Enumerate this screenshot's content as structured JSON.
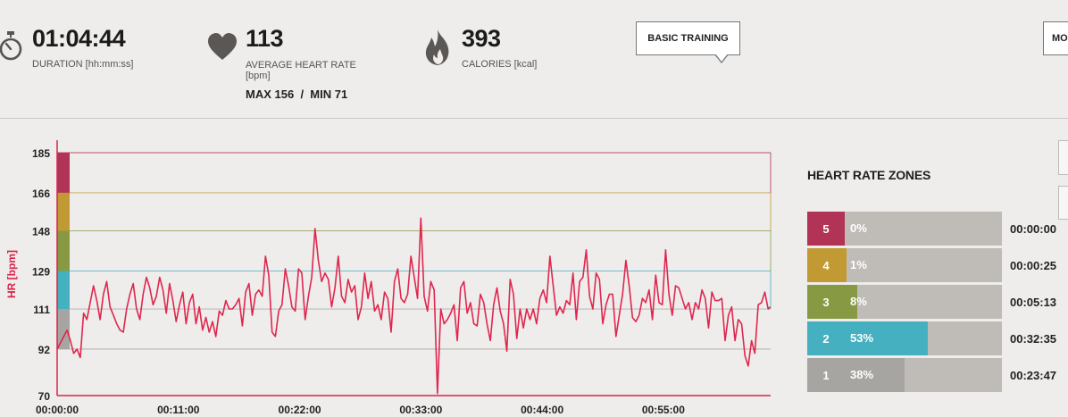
{
  "stats": {
    "duration": {
      "value": "01:04:44",
      "label": "DURATION [hh:mm:ss]",
      "icon": "stopwatch-icon"
    },
    "heart_rate": {
      "value": "113",
      "label": "AVERAGE HEART RATE [bpm]",
      "max_label": "MAX 156",
      "separator": "/",
      "min_label": "MIN 71",
      "icon": "heart-icon"
    },
    "calories": {
      "value": "393",
      "label": "CALORIES [kcal]",
      "icon": "flame-icon"
    }
  },
  "buttons": {
    "training_type": "BASIC TRAINING",
    "more": "MO"
  },
  "zones": {
    "title": "HEART RATE ZONES",
    "items": [
      {
        "zone": "5",
        "percent": "0%",
        "fraction": 0.0,
        "time": "00:00:00",
        "color": "#b13355"
      },
      {
        "zone": "4",
        "percent": "1%",
        "fraction": 0.01,
        "time": "00:00:25",
        "color": "#c29a33"
      },
      {
        "zone": "3",
        "percent": "8%",
        "fraction": 0.08,
        "time": "00:05:13",
        "color": "#879a43"
      },
      {
        "zone": "2",
        "percent": "53%",
        "fraction": 0.53,
        "time": "00:32:35",
        "color": "#45b0c0"
      },
      {
        "zone": "1",
        "percent": "38%",
        "fraction": 0.38,
        "time": "00:23:47",
        "color": "#a7a5a2"
      }
    ]
  },
  "chart_data": {
    "type": "line",
    "ylabel": "HR [bpm]",
    "y_ticks": [
      "185",
      "166",
      "148",
      "129",
      "111",
      "92",
      "70"
    ],
    "ylim": [
      70,
      185
    ],
    "x_ticks": [
      "00:00:00",
      "00:11:00",
      "00:22:00",
      "00:33:00",
      "00:44:00",
      "00:55:00"
    ],
    "x_unit": "minutes",
    "xlim": [
      0,
      64.73
    ],
    "zone_bands": [
      {
        "from": 166,
        "to": 185,
        "color": "#b13355"
      },
      {
        "from": 148,
        "to": 166,
        "color": "#c29a33"
      },
      {
        "from": 129,
        "to": 148,
        "color": "#879a43"
      },
      {
        "from": 111,
        "to": 129,
        "color": "#45b0c0"
      },
      {
        "from": 92,
        "to": 111,
        "color": "#a7a5a2"
      }
    ],
    "line_color": "#e0264e",
    "series": [
      {
        "x": [
          0,
          0.3,
          0.6,
          0.9,
          1.2,
          1.5,
          1.8,
          2.1,
          2.4,
          2.7,
          3.0,
          3.3,
          3.6,
          3.9,
          4.2,
          4.5,
          4.8,
          5.1,
          5.4,
          5.7,
          6.0,
          6.3,
          6.6,
          6.9,
          7.2,
          7.5,
          7.8,
          8.1,
          8.4,
          8.7,
          9.0,
          9.3,
          9.6,
          9.9,
          10.2,
          10.5,
          10.8,
          11.1,
          11.4,
          11.7,
          12.0,
          12.3,
          12.6,
          12.9,
          13.2,
          13.5,
          13.8,
          14.1,
          14.4,
          14.7,
          15.0,
          15.3,
          15.6,
          15.9,
          16.2,
          16.5,
          16.8,
          17.1,
          17.4,
          17.7,
          18.0,
          18.3,
          18.6,
          18.9,
          19.2,
          19.5,
          19.8,
          20.1,
          20.4,
          20.7,
          21.0,
          21.3,
          21.6,
          21.9,
          22.2,
          22.5,
          22.8,
          23.1,
          23.4,
          23.7,
          24.0,
          24.3,
          24.6,
          24.9,
          25.2,
          25.5,
          25.8,
          26.1,
          26.4,
          26.7,
          27.0,
          27.3,
          27.6,
          27.9,
          28.2,
          28.5,
          28.8,
          29.1,
          29.4,
          29.7,
          30.0,
          30.3,
          30.6,
          30.9,
          31.2,
          31.5,
          31.8,
          32.1,
          32.4,
          32.7,
          33.0,
          33.3,
          33.6,
          33.9,
          34.2,
          34.5,
          34.8,
          35.1,
          35.4,
          35.7,
          36.0,
          36.3,
          36.6,
          36.9,
          37.2,
          37.5,
          37.8,
          38.1,
          38.4,
          38.7,
          39.0,
          39.3,
          39.6,
          39.9,
          40.2,
          40.5,
          40.8,
          41.1,
          41.4,
          41.7,
          42.0,
          42.3,
          42.6,
          42.9,
          43.2,
          43.5,
          43.8,
          44.1,
          44.4,
          44.7,
          45.0,
          45.3,
          45.6,
          45.9,
          46.2,
          46.5,
          46.8,
          47.1,
          47.4,
          47.7,
          48.0,
          48.3,
          48.6,
          48.9,
          49.2,
          49.5,
          49.8,
          50.1,
          50.4,
          50.7,
          51.0,
          51.3,
          51.6,
          51.9,
          52.2,
          52.5,
          52.8,
          53.1,
          53.4,
          53.7,
          54.0,
          54.3,
          54.6,
          54.9,
          55.2,
          55.5,
          55.8,
          56.1,
          56.4,
          56.7,
          57.0,
          57.3,
          57.6,
          57.9,
          58.2,
          58.5,
          58.8,
          59.1,
          59.4,
          59.7,
          60.0,
          60.3,
          60.6,
          60.9,
          61.2,
          61.5,
          61.8,
          62.1,
          62.4,
          62.7,
          63.0,
          63.3,
          63.6,
          63.9,
          64.2,
          64.5,
          64.7
        ],
        "y": [
          92,
          95,
          98,
          101,
          96,
          90,
          92,
          88,
          109,
          106,
          114,
          122,
          115,
          106,
          118,
          124,
          112,
          108,
          104,
          101,
          100,
          111,
          118,
          123,
          111,
          106,
          118,
          126,
          121,
          113,
          117,
          126,
          120,
          109,
          123,
          115,
          105,
          113,
          119,
          104,
          114,
          118,
          104,
          112,
          101,
          107,
          100,
          105,
          98,
          110,
          108,
          115,
          111,
          111,
          113,
          116,
          103,
          119,
          123,
          108,
          118,
          120,
          117,
          136,
          127,
          100,
          98,
          110,
          113,
          130,
          122,
          112,
          110,
          130,
          128,
          106,
          117,
          126,
          149,
          134,
          124,
          128,
          125,
          112,
          121,
          136,
          117,
          114,
          125,
          119,
          122,
          106,
          112,
          128,
          116,
          124,
          110,
          113,
          106,
          119,
          116,
          100,
          124,
          130,
          116,
          114,
          118,
          136,
          126,
          116,
          154,
          117,
          110,
          124,
          120,
          71,
          111,
          104,
          106,
          109,
          113,
          96,
          121,
          124,
          109,
          114,
          104,
          103,
          118,
          114,
          104,
          96,
          113,
          121,
          110,
          104,
          91,
          125,
          118,
          97,
          111,
          102,
          111,
          106,
          111,
          104,
          116,
          120,
          114,
          136,
          122,
          108,
          112,
          109,
          115,
          113,
          128,
          106,
          124,
          126,
          139,
          117,
          111,
          128,
          125,
          104,
          113,
          118,
          118,
          98,
          108,
          118,
          134,
          122,
          107,
          105,
          108,
          116,
          114,
          120,
          106,
          127,
          114,
          113,
          139,
          118,
          108,
          122,
          121,
          116,
          111,
          114,
          106,
          114,
          111,
          120,
          116,
          102,
          119,
          115,
          115,
          116,
          96,
          108,
          112,
          96,
          106,
          104,
          89,
          84,
          96,
          90,
          113,
          114,
          119,
          111,
          112
        ],
        "name": ""
      }
    ]
  }
}
